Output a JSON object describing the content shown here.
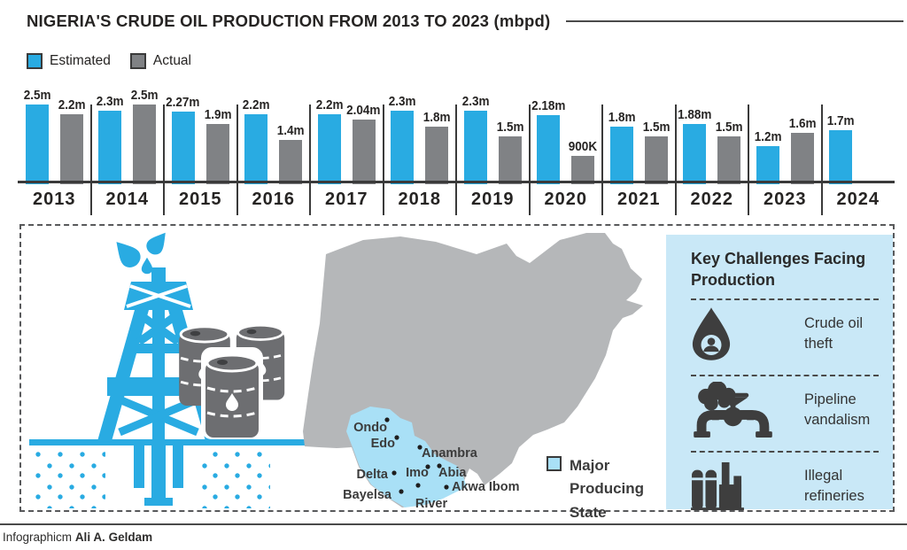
{
  "title": "NIGERIA'S CRUDE OIL PRODUCTION FROM 2013 TO 2023 (mbpd)",
  "legend": {
    "estimated_label": "Estimated",
    "actual_label": "Actual"
  },
  "colors": {
    "estimated_blue": "#29ABE2",
    "actual_gray": "#808285",
    "map_gray": "#B5B7B9",
    "producing_state_blue": "#A9E0F6",
    "challenges_bg": "#C9E8F7",
    "icon_dark": "#3E3E3E",
    "text_dark": "#262423"
  },
  "chart_data": {
    "type": "bar",
    "title": "NIGERIA'S CRUDE OIL PRODUCTION FROM 2013 TO 2023 (mbpd)",
    "unit_note": "mbpd",
    "categories": [
      "2013",
      "2014",
      "2015",
      "2016",
      "2017",
      "2018",
      "2019",
      "2020",
      "2021",
      "2022",
      "2023",
      "2024"
    ],
    "series": [
      {
        "name": "Estimated",
        "color": "#29ABE2",
        "values": [
          2.5,
          2.3,
          2.27,
          2.2,
          2.2,
          2.3,
          2.3,
          2.18,
          1.8,
          1.88,
          1.2,
          1.7
        ],
        "labels": [
          "2.5m",
          "2.3m",
          "2.27m",
          "2.2m",
          "2.2m",
          "2.3m",
          "2.3m",
          "2.18m",
          "1.8m",
          "1.88m",
          "1.2m",
          "1.7m"
        ]
      },
      {
        "name": "Actual",
        "color": "#808285",
        "values": [
          2.2,
          2.5,
          1.9,
          1.4,
          2.04,
          1.8,
          1.5,
          0.9,
          1.5,
          1.5,
          1.6,
          null
        ],
        "labels": [
          "2.2m",
          "2.5m",
          "1.9m",
          "1.4m",
          "2.04m",
          "1.8m",
          "1.5m",
          "900K",
          "1.5m",
          "1.5m",
          "1.6m",
          null
        ]
      }
    ],
    "ylim": [
      0,
      2.6
    ],
    "grid": false,
    "legend_position": "top-left"
  },
  "map": {
    "legend_label": "Major Producing State",
    "states": [
      {
        "name": "Ondo",
        "dot": [
          97,
          219
        ],
        "label": [
          97,
          232
        ],
        "anchor": "end"
      },
      {
        "name": "Edo",
        "dot": [
          108,
          239
        ],
        "label": [
          106,
          250
        ],
        "anchor": "end"
      },
      {
        "name": "Anambra",
        "dot": [
          134,
          250
        ],
        "label": [
          136,
          261
        ],
        "anchor": "start"
      },
      {
        "name": "Delta",
        "dot": [
          105,
          279
        ],
        "label": [
          98,
          285
        ],
        "anchor": "end"
      },
      {
        "name": "Imo",
        "dot": [
          143,
          272
        ],
        "label": [
          131,
          283
        ],
        "anchor": "middle"
      },
      {
        "name": "Abia",
        "dot": [
          156,
          271
        ],
        "label": [
          155,
          283
        ],
        "anchor": "start"
      },
      {
        "name": "Akwa Ibom",
        "dot": [
          164,
          295
        ],
        "label": [
          170,
          299
        ],
        "anchor": "start"
      },
      {
        "name": "Bayelsa",
        "dot": [
          113,
          300
        ],
        "label": [
          102,
          308
        ],
        "anchor": "end"
      },
      {
        "name": "River",
        "dot": [
          132,
          293
        ],
        "label": [
          147,
          318
        ],
        "anchor": "middle"
      }
    ]
  },
  "challenges": {
    "title": "Key Challenges Facing Production",
    "items": [
      {
        "icon": "crude-oil-theft-icon",
        "label": "Crude oil theft"
      },
      {
        "icon": "pipeline-vandalism-icon",
        "label": "Pipeline vandalism"
      },
      {
        "icon": "illegal-refineries-icon",
        "label": "Illegal refineries"
      }
    ]
  },
  "footer": {
    "credit_prefix": "Infographicm",
    "credit_author": "Ali A. Geldam"
  }
}
